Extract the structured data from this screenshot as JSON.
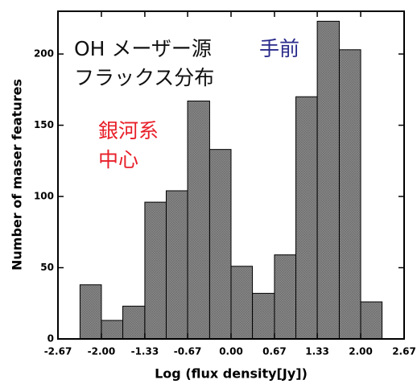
{
  "chart_data": {
    "type": "histogram",
    "xlabel": "Log (flux density[Jy])",
    "ylabel": "Number of maser features",
    "bins": [
      -2.33,
      -2,
      -1.67,
      -1.33,
      -1,
      -0.67,
      -0.33,
      0,
      0.33,
      0.67,
      1,
      1.33,
      1.67,
      2,
      2.33
    ],
    "values": [
      38,
      13,
      23,
      96,
      104,
      167,
      133,
      51,
      32,
      59,
      170,
      223,
      203,
      26
    ],
    "color": "#8a8a8a",
    "xlim": [
      -2.67,
      2.67
    ],
    "xticks": [
      -2.67,
      {
        "value": -2,
        "label": "-2.00"
      },
      -1.33,
      -0.67,
      {
        "value": 0,
        "label": "0.00"
      },
      0.67,
      1.33,
      {
        "value": 2,
        "label": "2.00"
      },
      2.67
    ],
    "ylim": [
      0,
      230
    ],
    "yticks": [
      0,
      50,
      100,
      150,
      200
    ],
    "annotations": [
      {
        "text": "OH メーザー源",
        "color": "#111111"
      },
      {
        "text": "フラックス分布",
        "color": "#111111"
      },
      {
        "text": "手前",
        "color": "#2b2b8c"
      },
      {
        "text": "銀河系",
        "color": "#e8202a"
      },
      {
        "text": "中心",
        "color": "#e8202a"
      }
    ]
  }
}
